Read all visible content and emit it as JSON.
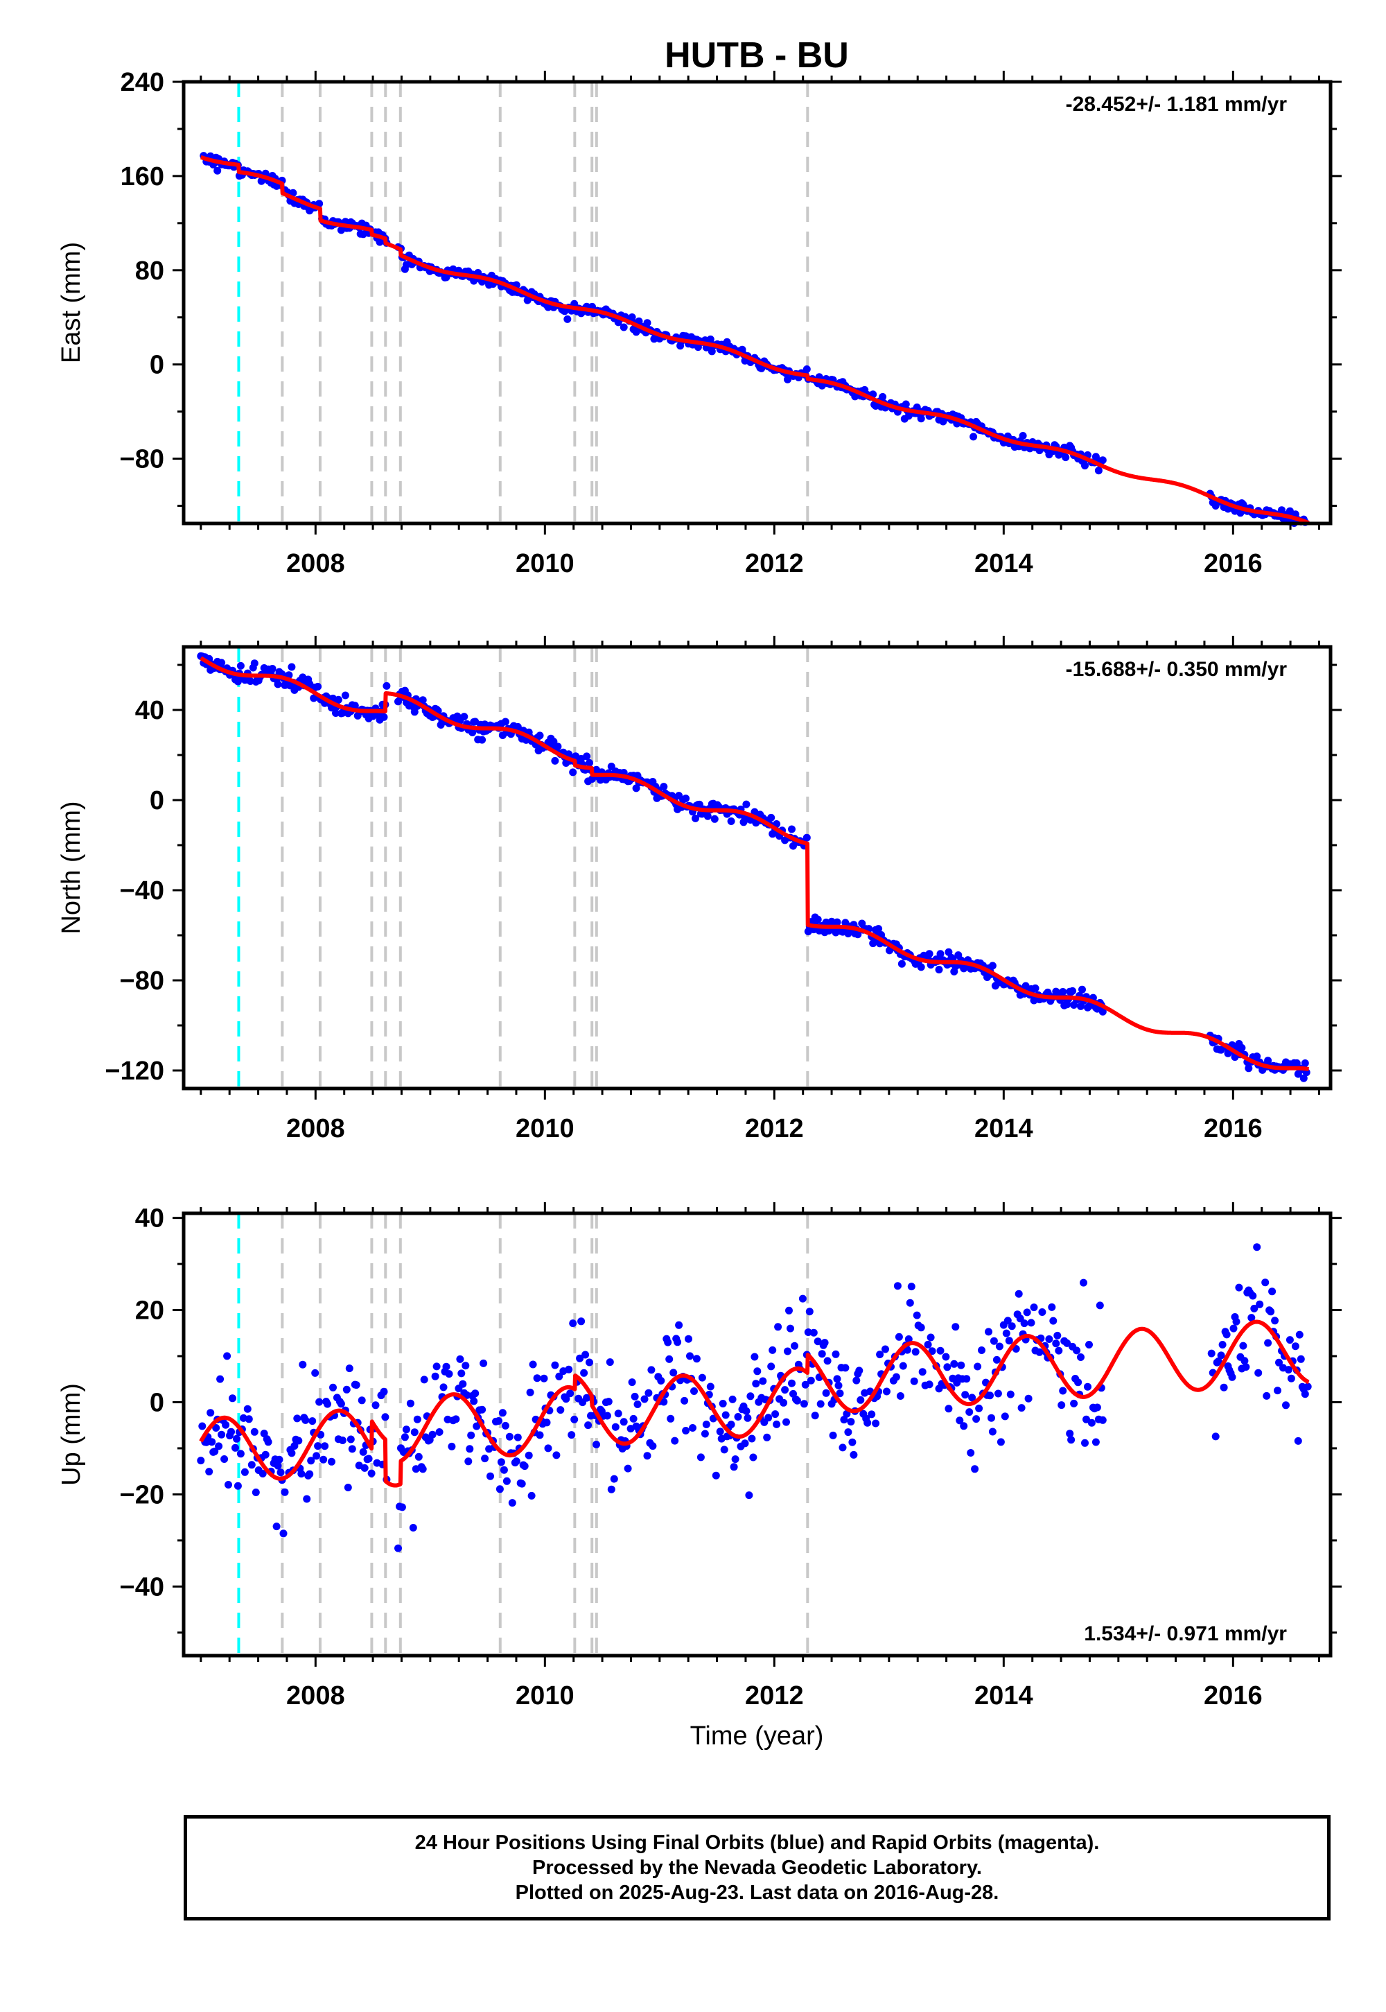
{
  "title": "HUTB - BU",
  "xlabel": "Time (year)",
  "x_ticks": [
    2008,
    2010,
    2012,
    2014,
    2016
  ],
  "x_range": [
    2006.85,
    2016.85
  ],
  "colors": {
    "final_orbits": "#0000ff",
    "model": "#ff0000",
    "antenna_change": "#00ffff",
    "other_event": "#c8c8c8"
  },
  "event_lines": {
    "antenna_change": [
      2007.33
    ],
    "other": [
      2007.71,
      2008.04,
      2008.49,
      2008.61,
      2008.74,
      2009.61,
      2010.26,
      2010.41,
      2010.45,
      2012.29
    ]
  },
  "chart_data": [
    {
      "type": "scatter",
      "panel": "east",
      "ylabel": "East (mm)",
      "ylim": [
        -135,
        240
      ],
      "y_ticks": [
        240,
        160,
        80,
        0,
        -80
      ],
      "y_minor_step": 40,
      "rate_label": "-28.452+/- 1.181 mm/yr",
      "rate_position": "top-right",
      "model": {
        "slope": -28.452,
        "ref_time": 2010.0,
        "ref_value": 56,
        "seasonal_amplitude": 2.5,
        "seasonal_phase": 0.3,
        "offsets": [
          {
            "t": 2007.33,
            "dy": -6
          },
          {
            "t": 2007.71,
            "dy": -8
          },
          {
            "t": 2008.04,
            "dy": -10
          },
          {
            "t": 2008.49,
            "dy": -4
          },
          {
            "t": 2008.61,
            "dy": -4
          },
          {
            "t": 2008.74,
            "dy": -5
          },
          {
            "t": 2012.29,
            "dy": -3
          }
        ]
      },
      "series": [
        {
          "name": "Final Orbits",
          "noise": 2.5,
          "segments": [
            [
              2007.0,
              2008.62
            ],
            [
              2008.72,
              2014.87
            ],
            [
              2015.8,
              2016.66
            ]
          ]
        }
      ]
    },
    {
      "type": "scatter",
      "panel": "north",
      "ylabel": "North (mm)",
      "ylim": [
        -128,
        68
      ],
      "y_ticks": [
        40,
        0,
        -40,
        -80,
        -120
      ],
      "y_minor_step": 20,
      "rate_label": "-15.688+/- 0.350 mm/yr",
      "rate_position": "top-right",
      "model": {
        "slope": -15.688,
        "ref_time": 2010.0,
        "ref_value": 24,
        "seasonal_amplitude": 2.5,
        "seasonal_phase": 0.5,
        "offsets": [
          {
            "t": 2008.61,
            "dy": 8
          },
          {
            "t": 2010.26,
            "dy": -2
          },
          {
            "t": 2010.41,
            "dy": -3
          },
          {
            "t": 2012.29,
            "dy": -36
          }
        ]
      },
      "series": [
        {
          "name": "Final Orbits",
          "noise": 2.0,
          "segments": [
            [
              2007.0,
              2008.62
            ],
            [
              2008.72,
              2014.87
            ],
            [
              2015.8,
              2016.66
            ]
          ]
        }
      ]
    },
    {
      "type": "scatter",
      "panel": "up",
      "ylabel": "Up (mm)",
      "ylim": [
        -55,
        41
      ],
      "y_ticks": [
        40,
        20,
        0,
        -20,
        -40
      ],
      "y_minor_step": 10,
      "rate_label": "1.534+/- 0.971 mm/yr",
      "rate_position": "bottom-right",
      "model": {
        "slope": 1.534,
        "ref_time": 2012.0,
        "ref_value": 0,
        "seasonal_amplitude": 7,
        "seasonal_phase": 0.95,
        "offsets": [
          {
            "t": 2008.49,
            "dy": 6
          },
          {
            "t": 2008.61,
            "dy": -9
          },
          {
            "t": 2008.74,
            "dy": 5
          },
          {
            "t": 2010.26,
            "dy": 3
          },
          {
            "t": 2010.41,
            "dy": -2
          },
          {
            "t": 2012.29,
            "dy": 4
          }
        ]
      },
      "series": [
        {
          "name": "Final Orbits",
          "noise": 6.5,
          "segments": [
            [
              2007.0,
              2008.62
            ],
            [
              2008.72,
              2014.87
            ],
            [
              2015.8,
              2016.66
            ]
          ]
        }
      ]
    }
  ],
  "footer": {
    "line1": "24 Hour Positions Using Final Orbits (blue) and Rapid Orbits (magenta).",
    "line2": "Processed by the Nevada Geodetic Laboratory.",
    "line3": "Plotted on 2025-Aug-23. Last data on 2016-Aug-28."
  }
}
